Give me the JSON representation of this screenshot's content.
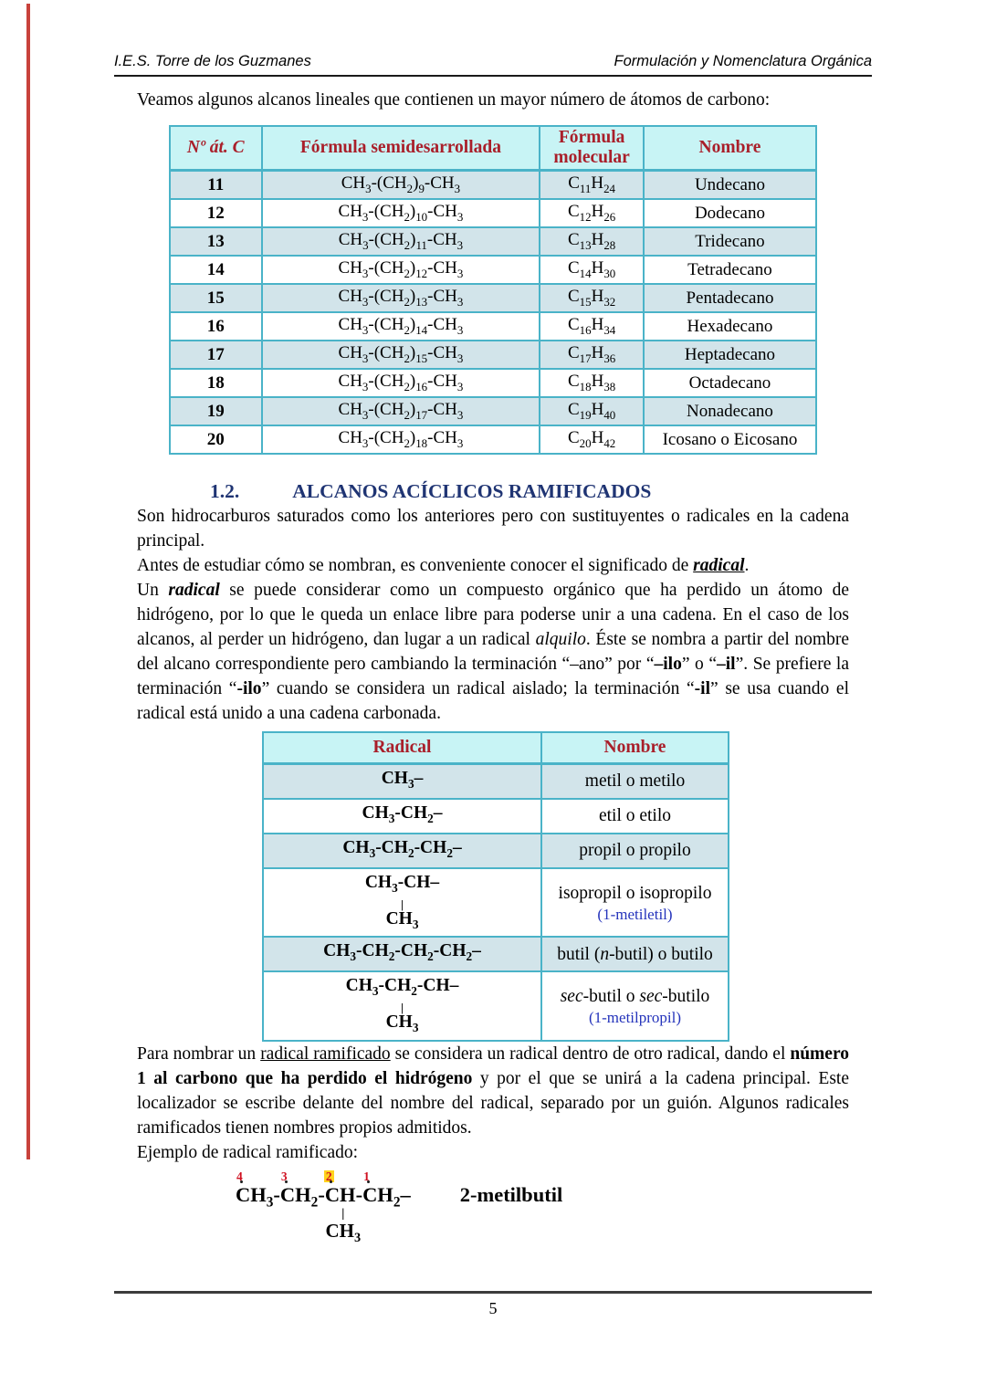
{
  "page_header": {
    "left": "I.E.S. Torre de los Guzmanes",
    "right": "Formulación y Nomenclatura Orgánica"
  },
  "intro_paragraph": "Veamos algunos alcanos lineales que contienen un mayor número de átomos de carbono:",
  "alkanes_table": {
    "headers": [
      "Nº át. C",
      "Fórmula semidesarrollada",
      "Fórmula molecular",
      "Nombre"
    ],
    "rows": [
      {
        "n": "11",
        "semi": "CH~3~-(CH~2~)~9~-CH~3~",
        "mol": "C~11~H~24~",
        "name": "Undecano"
      },
      {
        "n": "12",
        "semi": "CH~3~-(CH~2~)~10~-CH~3~",
        "mol": "C~12~H~26~",
        "name": "Dodecano"
      },
      {
        "n": "13",
        "semi": "CH~3~-(CH~2~)~11~-CH~3~",
        "mol": "C~13~H~28~",
        "name": "Tridecano"
      },
      {
        "n": "14",
        "semi": "CH~3~-(CH~2~)~12~-CH~3~",
        "mol": "C~14~H~30~",
        "name": "Tetradecano"
      },
      {
        "n": "15",
        "semi": "CH~3~-(CH~2~)~13~-CH~3~",
        "mol": "C~15~H~32~",
        "name": "Pentadecano"
      },
      {
        "n": "16",
        "semi": "CH~3~-(CH~2~)~14~-CH~3~",
        "mol": "C~16~H~34~",
        "name": "Hexadecano"
      },
      {
        "n": "17",
        "semi": "CH~3~-(CH~2~)~15~-CH~3~",
        "mol": "C~17~H~36~",
        "name": "Heptadecano"
      },
      {
        "n": "18",
        "semi": "CH~3~-(CH~2~)~16~-CH~3~",
        "mol": "C~18~H~38~",
        "name": "Octadecano"
      },
      {
        "n": "19",
        "semi": "CH~3~-(CH~2~)~17~-CH~3~",
        "mol": "C~19~H~40~",
        "name": "Nonadecano"
      },
      {
        "n": "20",
        "semi": "CH~3~-(CH~2~)~18~-CH~3~",
        "mol": "C~20~H~42~",
        "name": "Icosano o Eicosano"
      }
    ]
  },
  "section": {
    "number": "1.2.",
    "title": "ALCANOS ACÍCLICOS RAMIFICADOS"
  },
  "paragraphs": {
    "after_heading": "Son hidrocarburos saturados como los anteriores pero con sustituyentes o radicales en la cadena principal.",
    "radical_intro": [
      {
        "t": "Antes de estudiar cómo se nombran, es conveniente conocer el significado de "
      },
      {
        "t": "radical",
        "s": "biu"
      },
      {
        "t": "."
      }
    ],
    "radical_definition": [
      {
        "t": "Un "
      },
      {
        "t": "radical",
        "s": "bi"
      },
      {
        "t": " se puede considerar como un compuesto orgánico que ha perdido un átomo de hidrógeno, por lo que le queda un enlace libre para poderse unir a una cadena. En el caso de los alcanos, al perder un hidrógeno, dan lugar a un radical "
      },
      {
        "t": "alquilo",
        "s": "i"
      },
      {
        "t": ". Éste se nombra a partir del nombre del alcano correspondiente pero cambiando la terminación “–ano” por “"
      },
      {
        "t": "–ilo",
        "s": "b"
      },
      {
        "t": "” o “"
      },
      {
        "t": "–il",
        "s": "b"
      },
      {
        "t": "”.  Se prefiere la terminación “"
      },
      {
        "t": "-ilo",
        "s": "b"
      },
      {
        "t": "” cuando se considera un radical aislado; la terminación “"
      },
      {
        "t": "-il",
        "s": "b"
      },
      {
        "t": "” se usa cuando el radical está unido a una cadena carbonada."
      }
    ],
    "naming_branched": [
      {
        "t": "Para nombrar un "
      },
      {
        "t": "radical ramificado",
        "s": "u"
      },
      {
        "t": " se considera un radical dentro de otro radical, dando el "
      },
      {
        "t": "número 1 al carbono que ha perdido el hidrógeno",
        "s": "b"
      },
      {
        "t": " y por el que se unirá a la cadena principal. Este localizador se escribe delante del nombre del radical, separado por un guión. Algunos radicales ramificados tienen nombres propios admitidos."
      }
    ],
    "example_label": "Ejemplo de radical ramificado:"
  },
  "radicals_table": {
    "headers": [
      "Radical",
      "Nombre"
    ],
    "rows": [
      {
        "shaded": true,
        "main": "CH~3~–",
        "name": [
          {
            "t": "metil o metilo"
          }
        ]
      },
      {
        "shaded": false,
        "main": "CH~3~-CH~2~–",
        "name": [
          {
            "t": "etil o etilo"
          }
        ]
      },
      {
        "shaded": true,
        "main": "CH~3~-CH~2~-CH~2~–",
        "name": [
          {
            "t": "propil o propilo"
          }
        ]
      },
      {
        "shaded": false,
        "main": "CH~3~-CH–",
        "branch": "CH~3~",
        "name": [
          {
            "t": "isopropil o isopropilo"
          }
        ],
        "name_sub": "(1-metiletil)"
      },
      {
        "shaded": true,
        "main": "CH~3~-CH~2~-CH~2~-CH~2~–",
        "name": [
          {
            "t": "butil ("
          },
          {
            "t": "n",
            "s": "i"
          },
          {
            "t": "-butil) o butilo"
          }
        ]
      },
      {
        "shaded": false,
        "main": "CH~3~-CH~2~-CH–",
        "branch": "CH~3~",
        "name": [
          {
            "t": "sec",
            "s": "i"
          },
          {
            "t": "-butil o "
          },
          {
            "t": "sec",
            "s": "i"
          },
          {
            "t": "-butilo"
          }
        ],
        "name_sub": "(1-metilpropil)"
      }
    ]
  },
  "example": {
    "carbons": [
      {
        "num": "4",
        "text": "CH~3~"
      },
      {
        "num": "3",
        "text": "CH~2~"
      },
      {
        "num": "2",
        "text": "CH",
        "hl": true,
        "branch": "CH~3~"
      },
      {
        "num": "1",
        "text": "CH~2~–"
      }
    ],
    "name": "2-metilbutil"
  },
  "footer": {
    "page_number": "5"
  },
  "colors": {
    "table_border": "#4ab3c8",
    "table_header_bg": "#c8f4f5",
    "table_header_text": "#a91f2a",
    "row_shaded_bg": "#d2e4ea",
    "section_heading": "#1f3473",
    "blue_note": "#2433bb",
    "locant_red": "#cf1020",
    "locant_highlight": "#ffd21e",
    "margin_line_red": "#c8423c"
  }
}
